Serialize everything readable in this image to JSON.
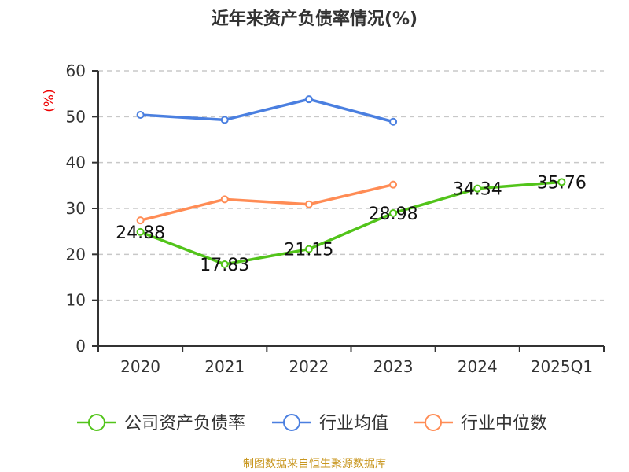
{
  "chart_data": {
    "type": "line",
    "title": "近年来资产负债率情况(%)",
    "ylabel": "(%)",
    "xlabel": "",
    "categories": [
      "2020",
      "2021",
      "2022",
      "2023",
      "2024",
      "2025Q1"
    ],
    "ylim": [
      0,
      60
    ],
    "yticks": [
      0,
      10,
      20,
      30,
      40,
      50,
      60
    ],
    "grid": true,
    "legend_position": "bottom",
    "series": [
      {
        "name": "公司资产负债率",
        "color": "#52c41a",
        "values": [
          24.88,
          17.83,
          21.15,
          28.98,
          34.34,
          35.76
        ],
        "labels": true
      },
      {
        "name": "行业均值",
        "color": "#4a7fe0",
        "values": [
          50.4,
          49.3,
          53.8,
          48.9,
          null,
          null
        ],
        "labels": false
      },
      {
        "name": "行业中位数",
        "color": "#ff8c55",
        "values": [
          27.4,
          32.0,
          30.9,
          35.2,
          null,
          null
        ],
        "labels": false
      }
    ]
  },
  "footer": "制图数据来自恒生聚源数据库"
}
